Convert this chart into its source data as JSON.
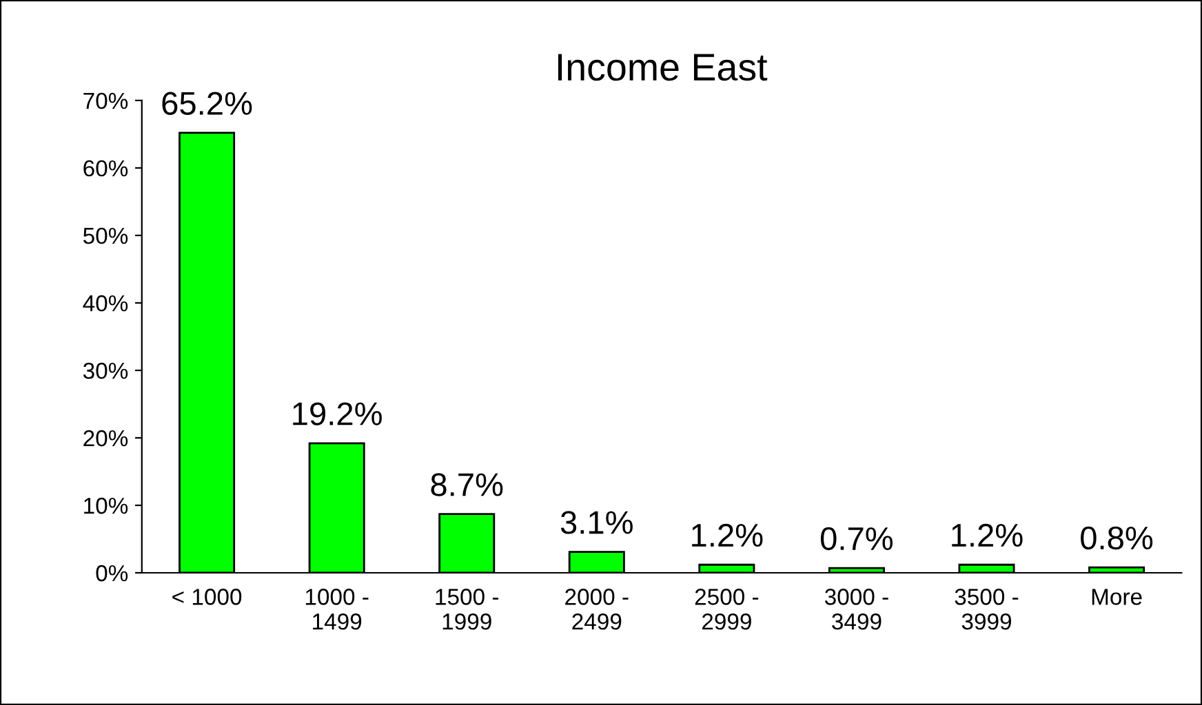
{
  "chart_data": {
    "type": "bar",
    "title": "Income East",
    "categories": [
      "< 1000",
      "1000 -\n1499",
      "1500 -\n1999",
      "2000 -\n2499",
      "2500 -\n2999",
      "3000 -\n3499",
      "3500 -\n3999",
      "More"
    ],
    "values": [
      65.2,
      19.2,
      8.7,
      3.1,
      1.2,
      0.7,
      1.2,
      0.8
    ],
    "value_labels": [
      "65.2%",
      "19.2%",
      "8.7%",
      "3.1%",
      "1.2%",
      "0.7%",
      "1.2%",
      "0.8%"
    ],
    "color": "#00ff00",
    "ylim": [
      0,
      70
    ],
    "yticks": [
      {
        "value": 0,
        "label": "0%"
      },
      {
        "value": 10,
        "label": "10%"
      },
      {
        "value": 20,
        "label": "20%"
      },
      {
        "value": 30,
        "label": "30%"
      },
      {
        "value": 40,
        "label": "40%"
      },
      {
        "value": 50,
        "label": "50%"
      },
      {
        "value": 60,
        "label": "60%"
      },
      {
        "value": 70,
        "label": "70%"
      }
    ],
    "grid": false,
    "legend": false
  }
}
